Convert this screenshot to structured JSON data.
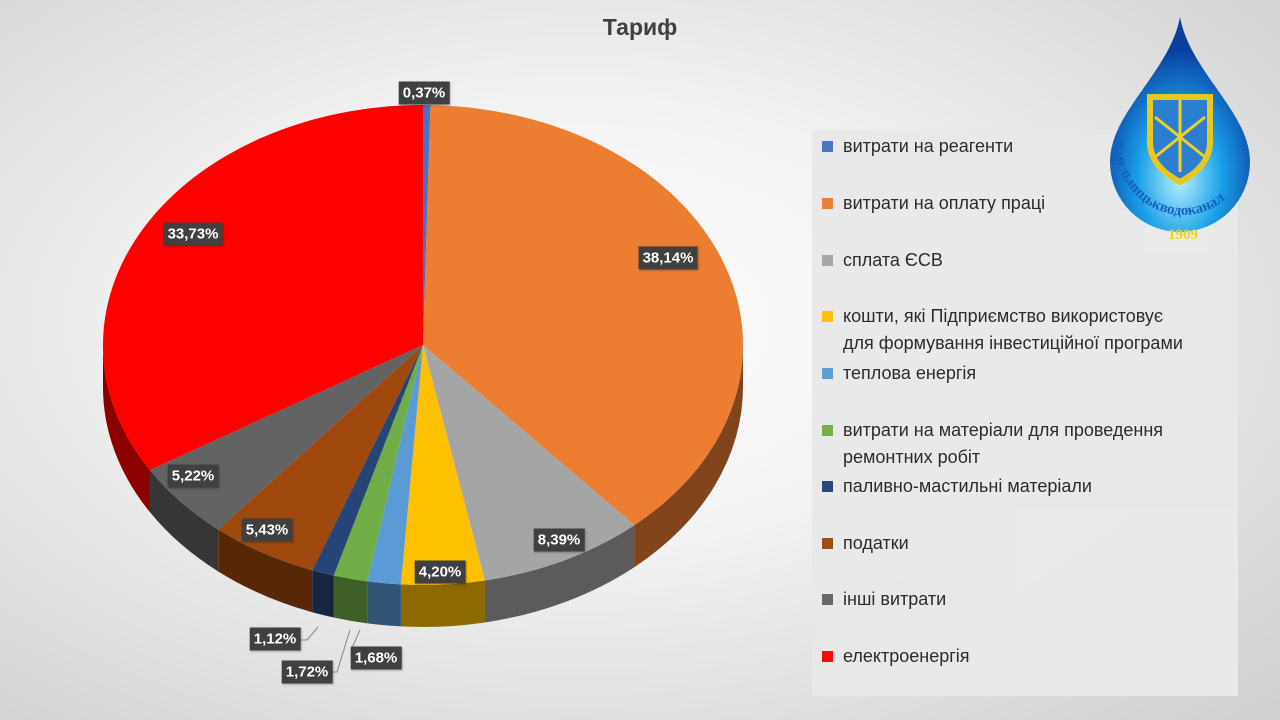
{
  "chart_data": {
    "type": "pie",
    "title": "Тариф",
    "categories": [
      "витрати на реагенти",
      "витрати на оплату праці",
      "сплата ЄСВ",
      "кошти, які Підприємство використовує для формування інвестиційної програми",
      "теплова енергія",
      "витрати на матеріали для проведення ремонтних робіт",
      "паливно-мастильні матеріали",
      "податки",
      "інші витрати",
      "електроенергія"
    ],
    "legend_lines": [
      [
        "витрати на реагенти"
      ],
      [
        "витрати на оплату праці"
      ],
      [
        "сплата ЄСВ"
      ],
      [
        "кошти, які Підприємство використовує",
        "для формування інвестиційної програми"
      ],
      [
        "теплова енергія"
      ],
      [
        "витрати на матеріали для проведення",
        "ремонтних робіт"
      ],
      [
        "паливно-мастильні матеріали"
      ],
      [
        "податки"
      ],
      [
        "інші витрати"
      ],
      [
        "електроенергія"
      ]
    ],
    "values": [
      0.37,
      38.14,
      8.39,
      4.2,
      1.68,
      1.72,
      1.12,
      5.43,
      5.22,
      33.73
    ],
    "data_labels": [
      "0,37%",
      "38,14%",
      "8,39%",
      "4,20%",
      "1,68%",
      "1,72%",
      "1,12%",
      "5,43%",
      "5,22%",
      "33,73%"
    ],
    "colors": [
      "#4472C4",
      "#ED7D31",
      "#A5A5A5",
      "#FFC000",
      "#5B9BD5",
      "#70AD47",
      "#264478",
      "#9E480E",
      "#636363",
      "#FF0000"
    ],
    "legend_position": "right"
  },
  "logo": {
    "name": "Хмельницькводоканал",
    "year": "1909"
  }
}
